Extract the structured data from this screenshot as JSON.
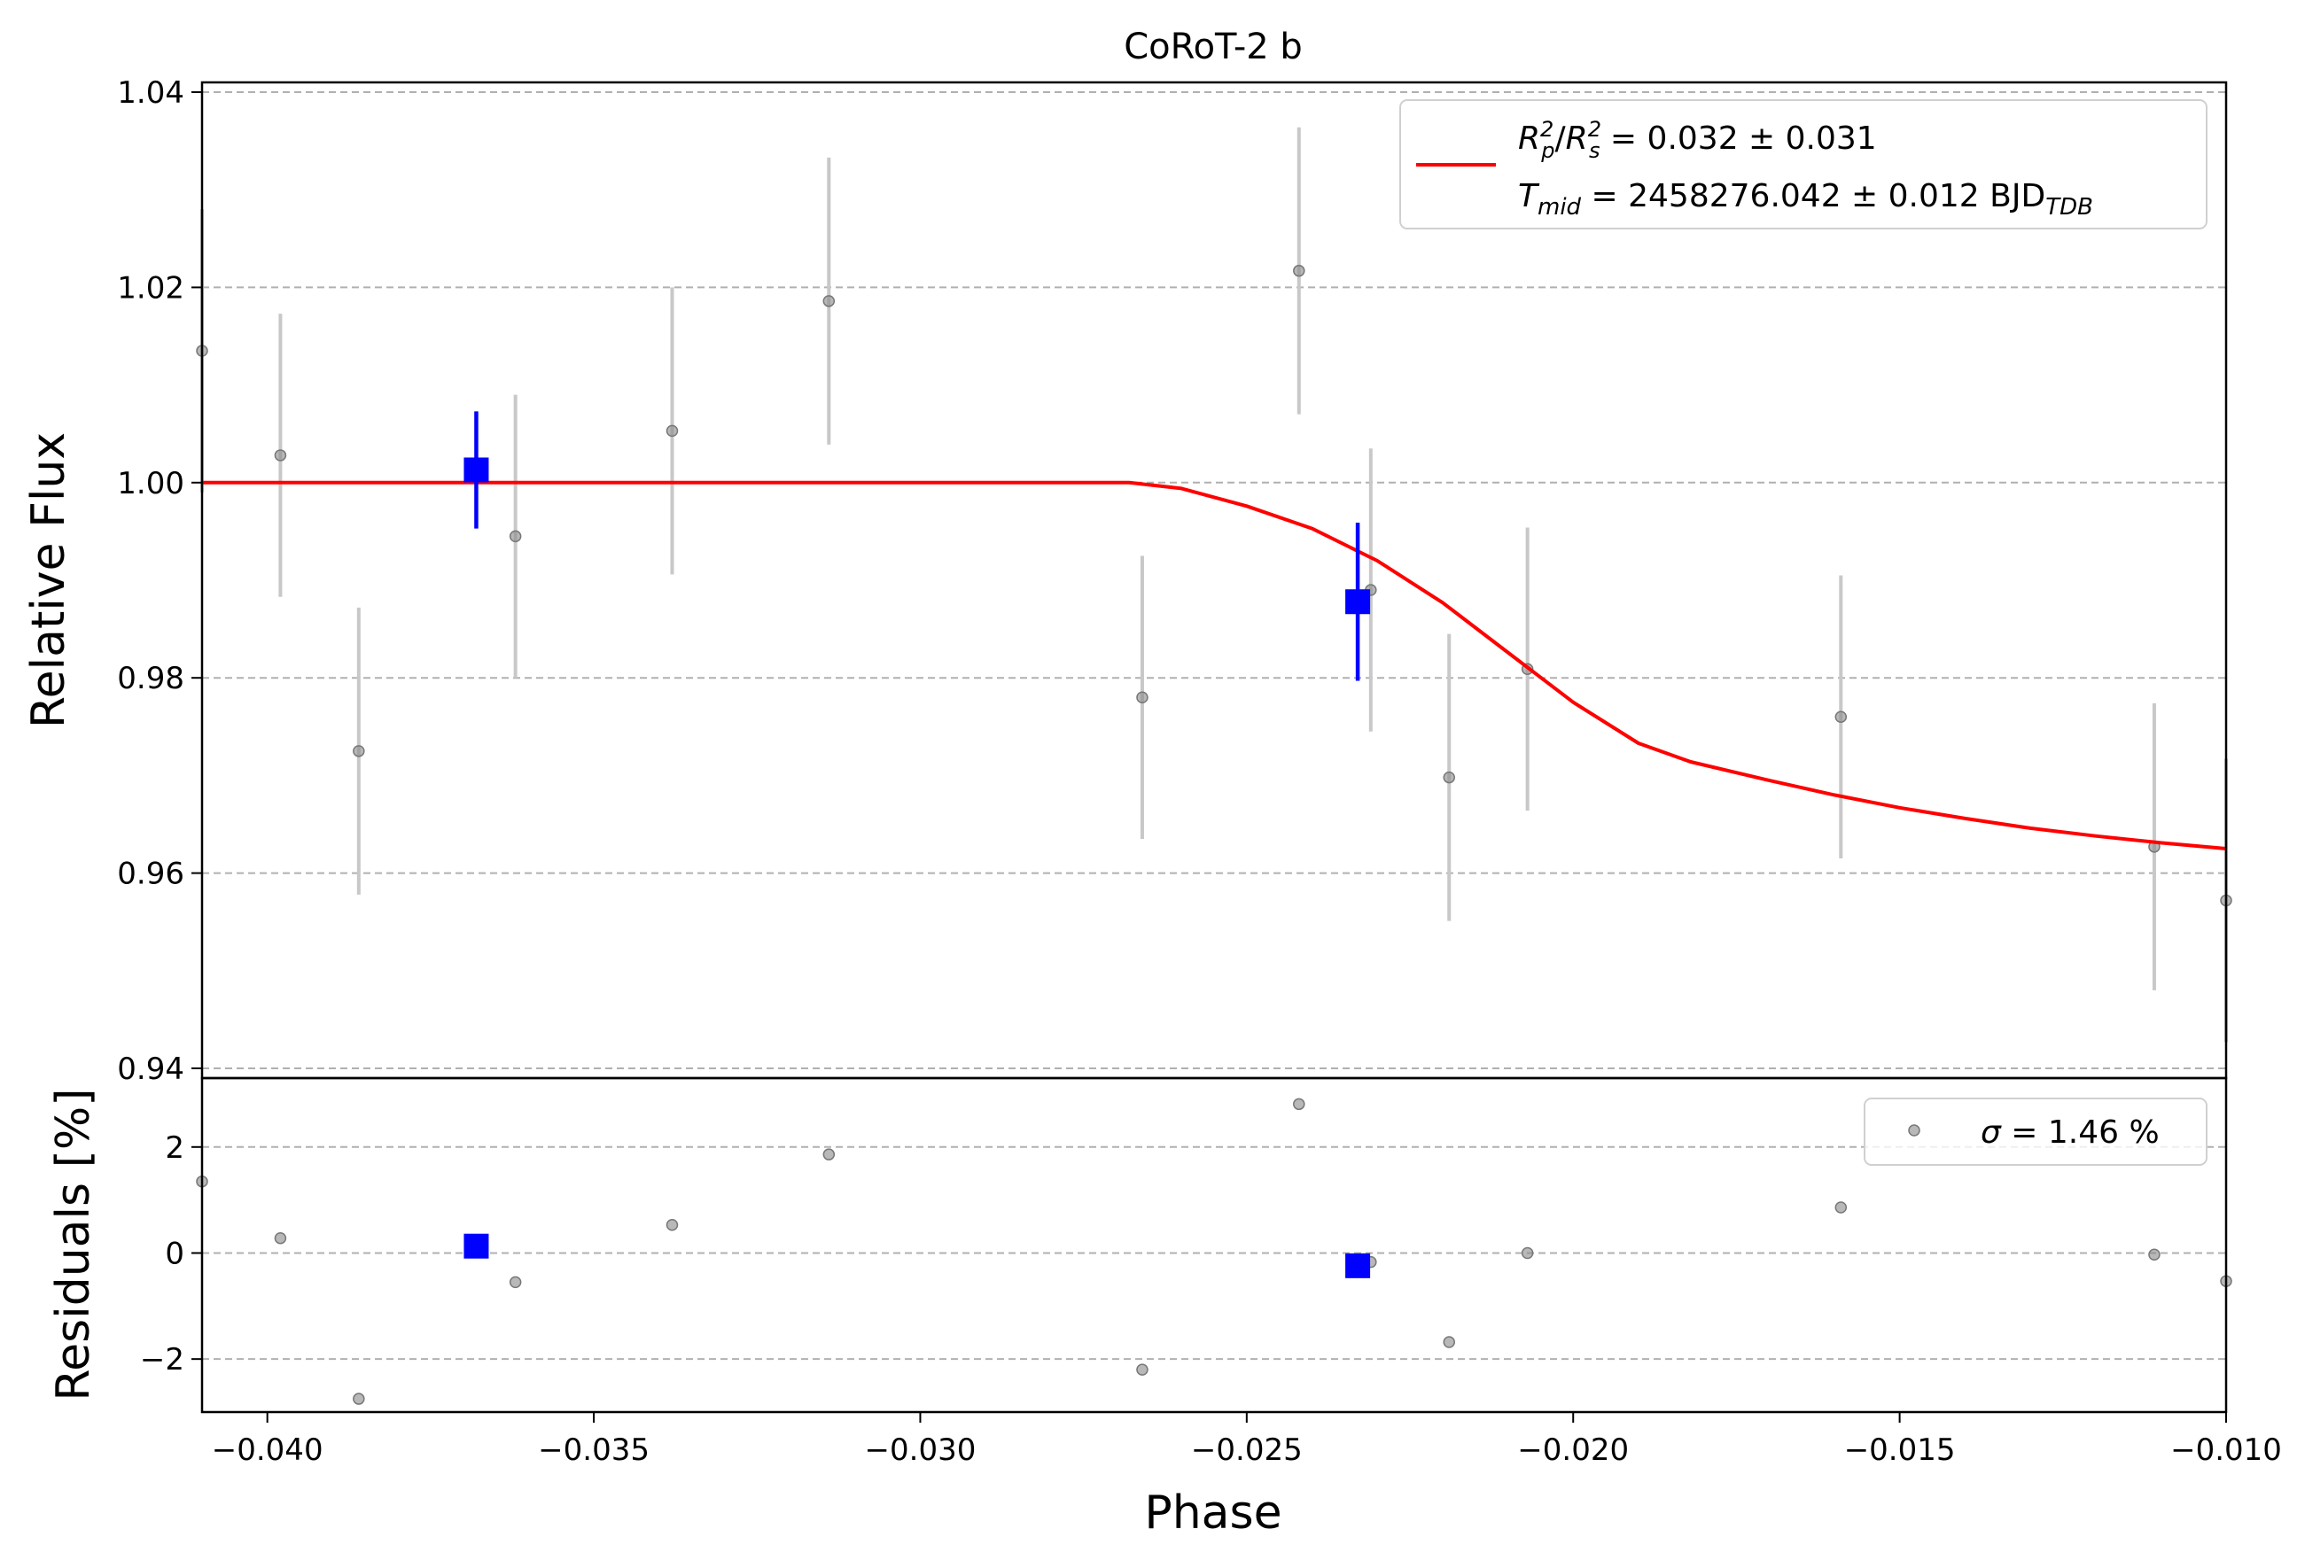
{
  "chart_data": {
    "type": "scatter",
    "title": "CoRoT-2 b",
    "xlabel": "Phase",
    "xlim": [
      -0.041,
      -0.01
    ],
    "xticks": [
      -0.04,
      -0.035,
      -0.03,
      -0.025,
      -0.02,
      -0.015,
      -0.01
    ],
    "xtick_labels": [
      "−0.040",
      "−0.035",
      "−0.030",
      "−0.025",
      "−0.020",
      "−0.015",
      "−0.010"
    ],
    "grid": "horizontal dashed",
    "colors": {
      "model": "#ff0000",
      "binned": "#0000ff",
      "raw": "#888888",
      "raw_err": "#c8c8c8",
      "grid": "#b0b0b0"
    },
    "panels": [
      {
        "name": "flux",
        "ylabel": "Relative Flux",
        "ylim": [
          0.939,
          1.041
        ],
        "yticks": [
          0.94,
          0.96,
          0.98,
          1.0,
          1.02,
          1.04
        ],
        "ytick_labels": [
          "0.94",
          "0.96",
          "0.98",
          "1.00",
          "1.02",
          "1.04"
        ],
        "legend": {
          "location": "top-right",
          "line1": {
            "a": "R",
            "a_sub": "p",
            "a_sup": "2",
            "b": "R",
            "b_sub": "s",
            "b_sup": "2",
            "rest": " = 0.032 ± 0.031"
          },
          "line2": {
            "var": "T",
            "var_sub": "mid",
            "rest": " = 2458276.042 ± 0.012 BJD",
            "rest_sub": "TDB"
          }
        },
        "series": [
          {
            "kind": "raw",
            "x": [
              -0.041,
              -0.0398,
              -0.0386,
              -0.0362,
              -0.0338,
              -0.0314,
              -0.0266,
              -0.0242,
              -0.0231,
              -0.0219,
              -0.0207,
              -0.0159,
              -0.0111,
              -0.01
            ],
            "y": [
              1.0135,
              1.0028,
              0.9725,
              0.9945,
              1.0053,
              1.0186,
              0.978,
              1.0217,
              0.989,
              0.9698,
              0.9809,
              0.976,
              0.9627,
              0.9572
            ],
            "yerr": [
              0.0145,
              0.0145,
              0.0147,
              0.0145,
              0.0147,
              0.0147,
              0.0145,
              0.0147,
              0.0145,
              0.0147,
              0.0145,
              0.0145,
              0.0147,
              0.0145
            ]
          },
          {
            "kind": "binned",
            "x": [
              -0.0368,
              -0.0233
            ],
            "y": [
              1.0013,
              0.9878
            ],
            "yerr": [
              0.006,
              0.0081
            ]
          },
          {
            "kind": "model",
            "x": [
              -0.041,
              -0.0268,
              -0.026,
              -0.025,
              -0.024,
              -0.023,
              -0.022,
              -0.021,
              -0.02,
              -0.019,
              -0.0182,
              -0.017,
              -0.016,
              -0.015,
              -0.014,
              -0.013,
              -0.012,
              -0.011,
              -0.01
            ],
            "y": [
              1.0,
              1.0,
              0.9994,
              0.9976,
              0.9953,
              0.992,
              0.9877,
              0.9826,
              0.9775,
              0.9733,
              0.9714,
              0.9695,
              0.968,
              0.9667,
              0.9656,
              0.9646,
              0.9638,
              0.9631,
              0.9625
            ]
          }
        ]
      },
      {
        "name": "residuals",
        "ylabel": "Residuals [%]",
        "ylim": [
          -3.0,
          3.3
        ],
        "yticks": [
          -2,
          0,
          2
        ],
        "ytick_labels": [
          "−2",
          "0",
          "2"
        ],
        "legend": {
          "location": "top-right",
          "var": "σ",
          "rest": " = 1.46 %"
        },
        "series": [
          {
            "kind": "raw",
            "x": [
              -0.041,
              -0.0398,
              -0.0386,
              -0.0362,
              -0.0338,
              -0.0314,
              -0.0266,
              -0.0242,
              -0.0231,
              -0.0219,
              -0.0207,
              -0.0159,
              -0.0111,
              -0.01
            ],
            "y": [
              1.35,
              0.28,
              -2.75,
              -0.55,
              0.53,
              1.86,
              -2.2,
              2.81,
              -0.17,
              -1.68,
              0.0,
              0.86,
              -0.03,
              -0.53
            ]
          },
          {
            "kind": "binned",
            "x": [
              -0.0368,
              -0.0233
            ],
            "y": [
              0.13,
              -0.24
            ]
          }
        ]
      }
    ]
  }
}
